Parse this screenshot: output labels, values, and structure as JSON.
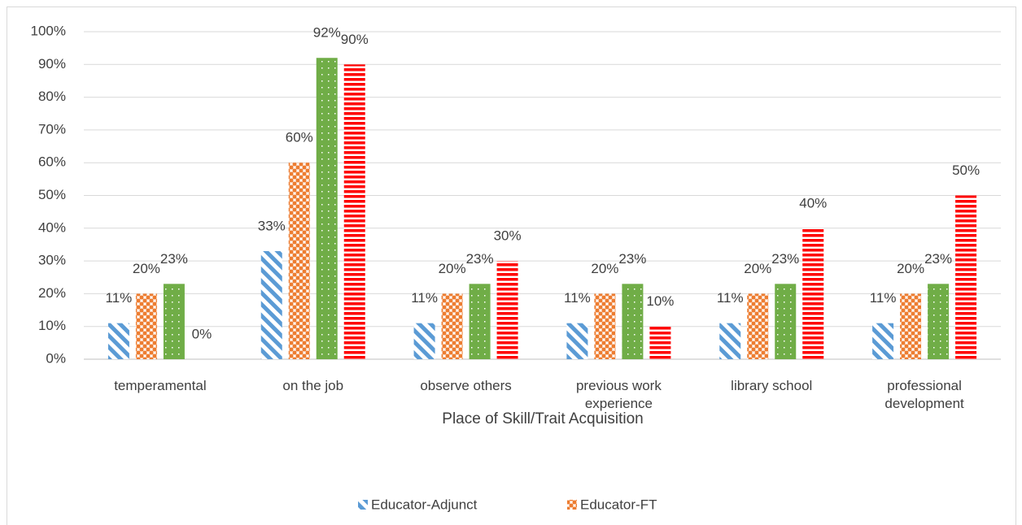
{
  "chart_data": {
    "type": "bar",
    "x_label": "Place of Skill/Trait Acquisition",
    "categories": [
      "temperamental",
      "on the job",
      "observe others",
      "previous work experience",
      "library school",
      "professional development"
    ],
    "series": [
      {
        "name": "Educator-Adjunct",
        "color": "#5b9bd5",
        "values": [
          11,
          33,
          11,
          11,
          11,
          11
        ],
        "value_labels": [
          "11%",
          "33%",
          "11%",
          "11%",
          "11%",
          "11%"
        ]
      },
      {
        "name": "Educator-FT",
        "color": "#ed7d31",
        "values": [
          20,
          60,
          20,
          20,
          20,
          20
        ],
        "value_labels": [
          "20%",
          "60%",
          "20%",
          "20%",
          "20%",
          "20%"
        ]
      },
      {
        "color": "#70ad47",
        "values": [
          23,
          92,
          23,
          23,
          23,
          23
        ],
        "value_labels": [
          "23%",
          "92%",
          "23%",
          "23%",
          "23%",
          "23%"
        ]
      },
      {
        "color": "#ff0000",
        "values": [
          0,
          90,
          30,
          10,
          40,
          50
        ],
        "value_labels": [
          "0%",
          "90%",
          "30%",
          "10%",
          "40%",
          "50%"
        ]
      }
    ],
    "ylim": [
      0,
      100
    ],
    "yticks": [
      {
        "value": 0,
        "label": "0%"
      },
      {
        "value": 10,
        "label": "10%"
      },
      {
        "value": 20,
        "label": "20%"
      },
      {
        "value": 30,
        "label": "30%"
      },
      {
        "value": 40,
        "label": "40%"
      },
      {
        "value": 50,
        "label": "50%"
      },
      {
        "value": 60,
        "label": "60%"
      },
      {
        "value": 70,
        "label": "70%"
      },
      {
        "value": 80,
        "label": "80%"
      },
      {
        "value": 90,
        "label": "90%"
      },
      {
        "value": 100,
        "label": "100%"
      }
    ],
    "grid": true,
    "legend": "bottom"
  }
}
